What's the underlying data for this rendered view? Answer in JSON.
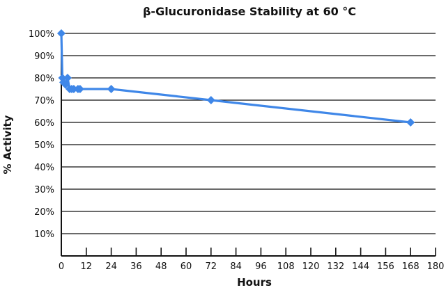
{
  "chart_data": {
    "type": "line",
    "title": "β-Glucuronidase Stability at 60 °C",
    "xlabel": "Hours",
    "ylabel": "% Activity",
    "xlim": [
      0,
      180
    ],
    "ylim": [
      0,
      100
    ],
    "x_ticks": [
      0,
      12,
      24,
      36,
      48,
      60,
      72,
      84,
      96,
      108,
      120,
      132,
      144,
      156,
      168,
      180
    ],
    "x_tick_labels": [
      "0",
      "12",
      "24",
      "36",
      "48",
      "60",
      "72",
      "84",
      "96",
      "108",
      "120",
      "132",
      "144",
      "156",
      "168",
      "180"
    ],
    "y_ticks": [
      10,
      20,
      30,
      40,
      50,
      60,
      70,
      80,
      90,
      100
    ],
    "y_tick_labels": [
      "10%",
      "20%",
      "30%",
      "40%",
      "50%",
      "60%",
      "70%",
      "80%",
      "90%",
      "100%"
    ],
    "grid": "horizontal",
    "legend": "none",
    "series": [
      {
        "name": "β-Glucuronidase",
        "color": "#3f87e8",
        "marker": "diamond",
        "x": [
          0,
          0.5,
          1,
          2,
          3,
          4,
          5,
          6,
          8,
          9,
          24,
          72,
          168
        ],
        "y": [
          100,
          80,
          78,
          77,
          80,
          75,
          75,
          75,
          75,
          75,
          75,
          70,
          60
        ]
      }
    ]
  }
}
